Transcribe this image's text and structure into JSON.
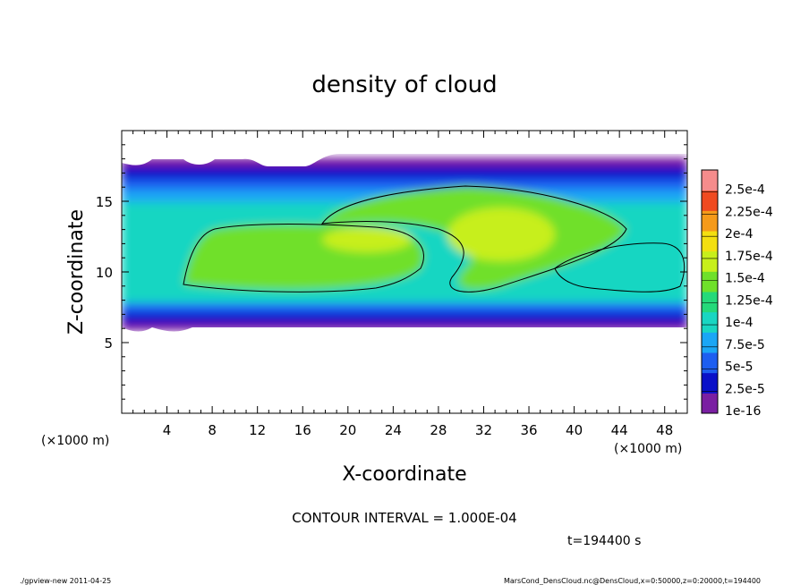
{
  "chart_data": {
    "type": "heatmap",
    "title": "density of cloud",
    "xlabel": "X-coordinate",
    "ylabel": "Z-coordinate",
    "x_unit_left": "(×1000 m)",
    "x_unit_right": "(×1000 m)",
    "xlim": [
      0,
      50
    ],
    "ylim": [
      0,
      20
    ],
    "x_ticks": [
      4,
      8,
      12,
      16,
      20,
      24,
      28,
      32,
      36,
      40,
      44,
      48
    ],
    "x_tick_labels": [
      "4",
      "8",
      "12",
      "16",
      "20",
      "24",
      "28",
      "32",
      "36",
      "40",
      "44",
      "48"
    ],
    "y_ticks": [
      5,
      10,
      15
    ],
    "y_tick_labels": [
      "5",
      "10",
      "15"
    ],
    "colorbar": {
      "labels": [
        "1e-16",
        "2.5e-5",
        "5e-5",
        "7.5e-5",
        "1e-4",
        "1.25e-4",
        "1.5e-4",
        "1.75e-4",
        "2e-4",
        "2.25e-4",
        "2.5e-4"
      ],
      "colors": [
        "#7a1fa2",
        "#0a10c8",
        "#1d5ef0",
        "#1aa6f5",
        "#19d6c2",
        "#25d97a",
        "#6fe02a",
        "#c7ef1b",
        "#f3df10",
        "#f59a1a",
        "#f04a20",
        "#f58c8c"
      ]
    },
    "contour_interval_text": "CONTOUR INTERVAL = 1.000E-04",
    "time_text": "t=194400 s",
    "footer_left": "./gpview-new  2011-04-25",
    "footer_right": "MarsCond_DensCloud.nc@DensCloud,x=0:50000,z=0:20000,t=194400",
    "colors": {
      "frame": "#000000",
      "background": "#ffffff"
    }
  }
}
